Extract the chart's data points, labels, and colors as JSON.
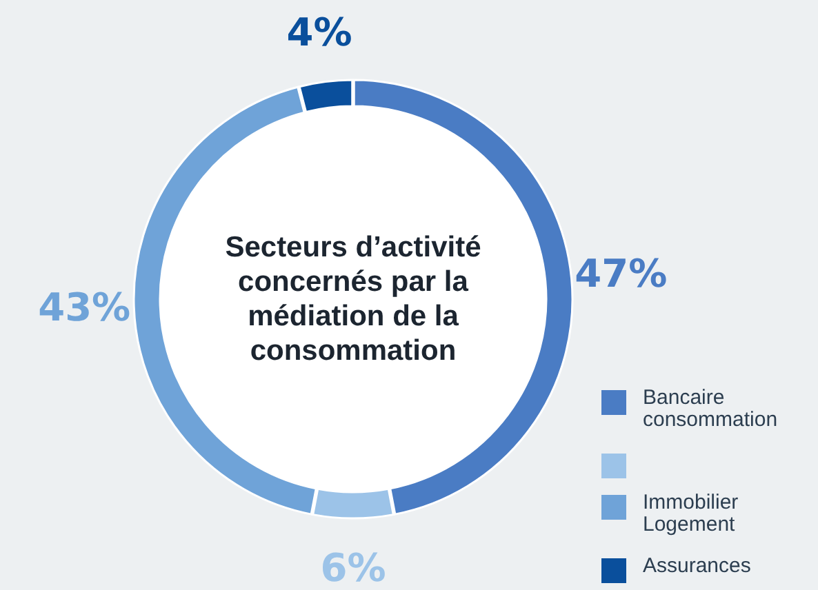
{
  "chart_data": {
    "type": "donut",
    "title": "Secteurs d’activité concernés par la médiation de la consommation",
    "categories": [
      "Bancaire consommation",
      null,
      "Immobilier Logement",
      "Assurances"
    ],
    "values": [
      47,
      6,
      43,
      4
    ],
    "colors": [
      "#4a7cc4",
      "#9cc3e8",
      "#6fa3d8",
      "#0a4f9c"
    ],
    "value_labels": [
      "47%",
      "6%",
      "43%",
      "4%"
    ],
    "legend": "bottom right"
  }
}
